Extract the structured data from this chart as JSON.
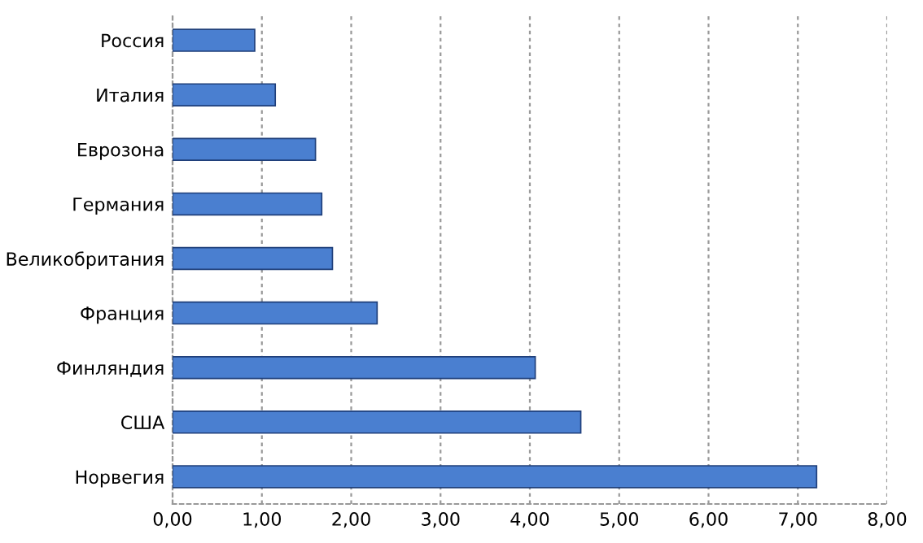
{
  "chart_data": {
    "type": "bar",
    "orientation": "horizontal",
    "categories": [
      "Россия",
      "Италия",
      "Еврозона",
      "Германия",
      "Великобритания",
      "Франция",
      "Финляндия",
      "США",
      "Норвегия"
    ],
    "values": [
      0.92,
      1.15,
      1.6,
      1.67,
      1.79,
      2.29,
      4.06,
      4.57,
      7.21
    ],
    "color": "#4a7fd0",
    "xlim": [
      0,
      8
    ],
    "xticks": [
      {
        "value": 0,
        "label": "0,00"
      },
      {
        "value": 1,
        "label": "1,00"
      },
      {
        "value": 2,
        "label": "2,00"
      },
      {
        "value": 3,
        "label": "3,00"
      },
      {
        "value": 4,
        "label": "4,00"
      },
      {
        "value": 5,
        "label": "5,00"
      },
      {
        "value": 6,
        "label": "6,00"
      },
      {
        "value": 7,
        "label": "7,00"
      },
      {
        "value": 8,
        "label": "8,00"
      }
    ],
    "grid": "x",
    "legend": false
  }
}
